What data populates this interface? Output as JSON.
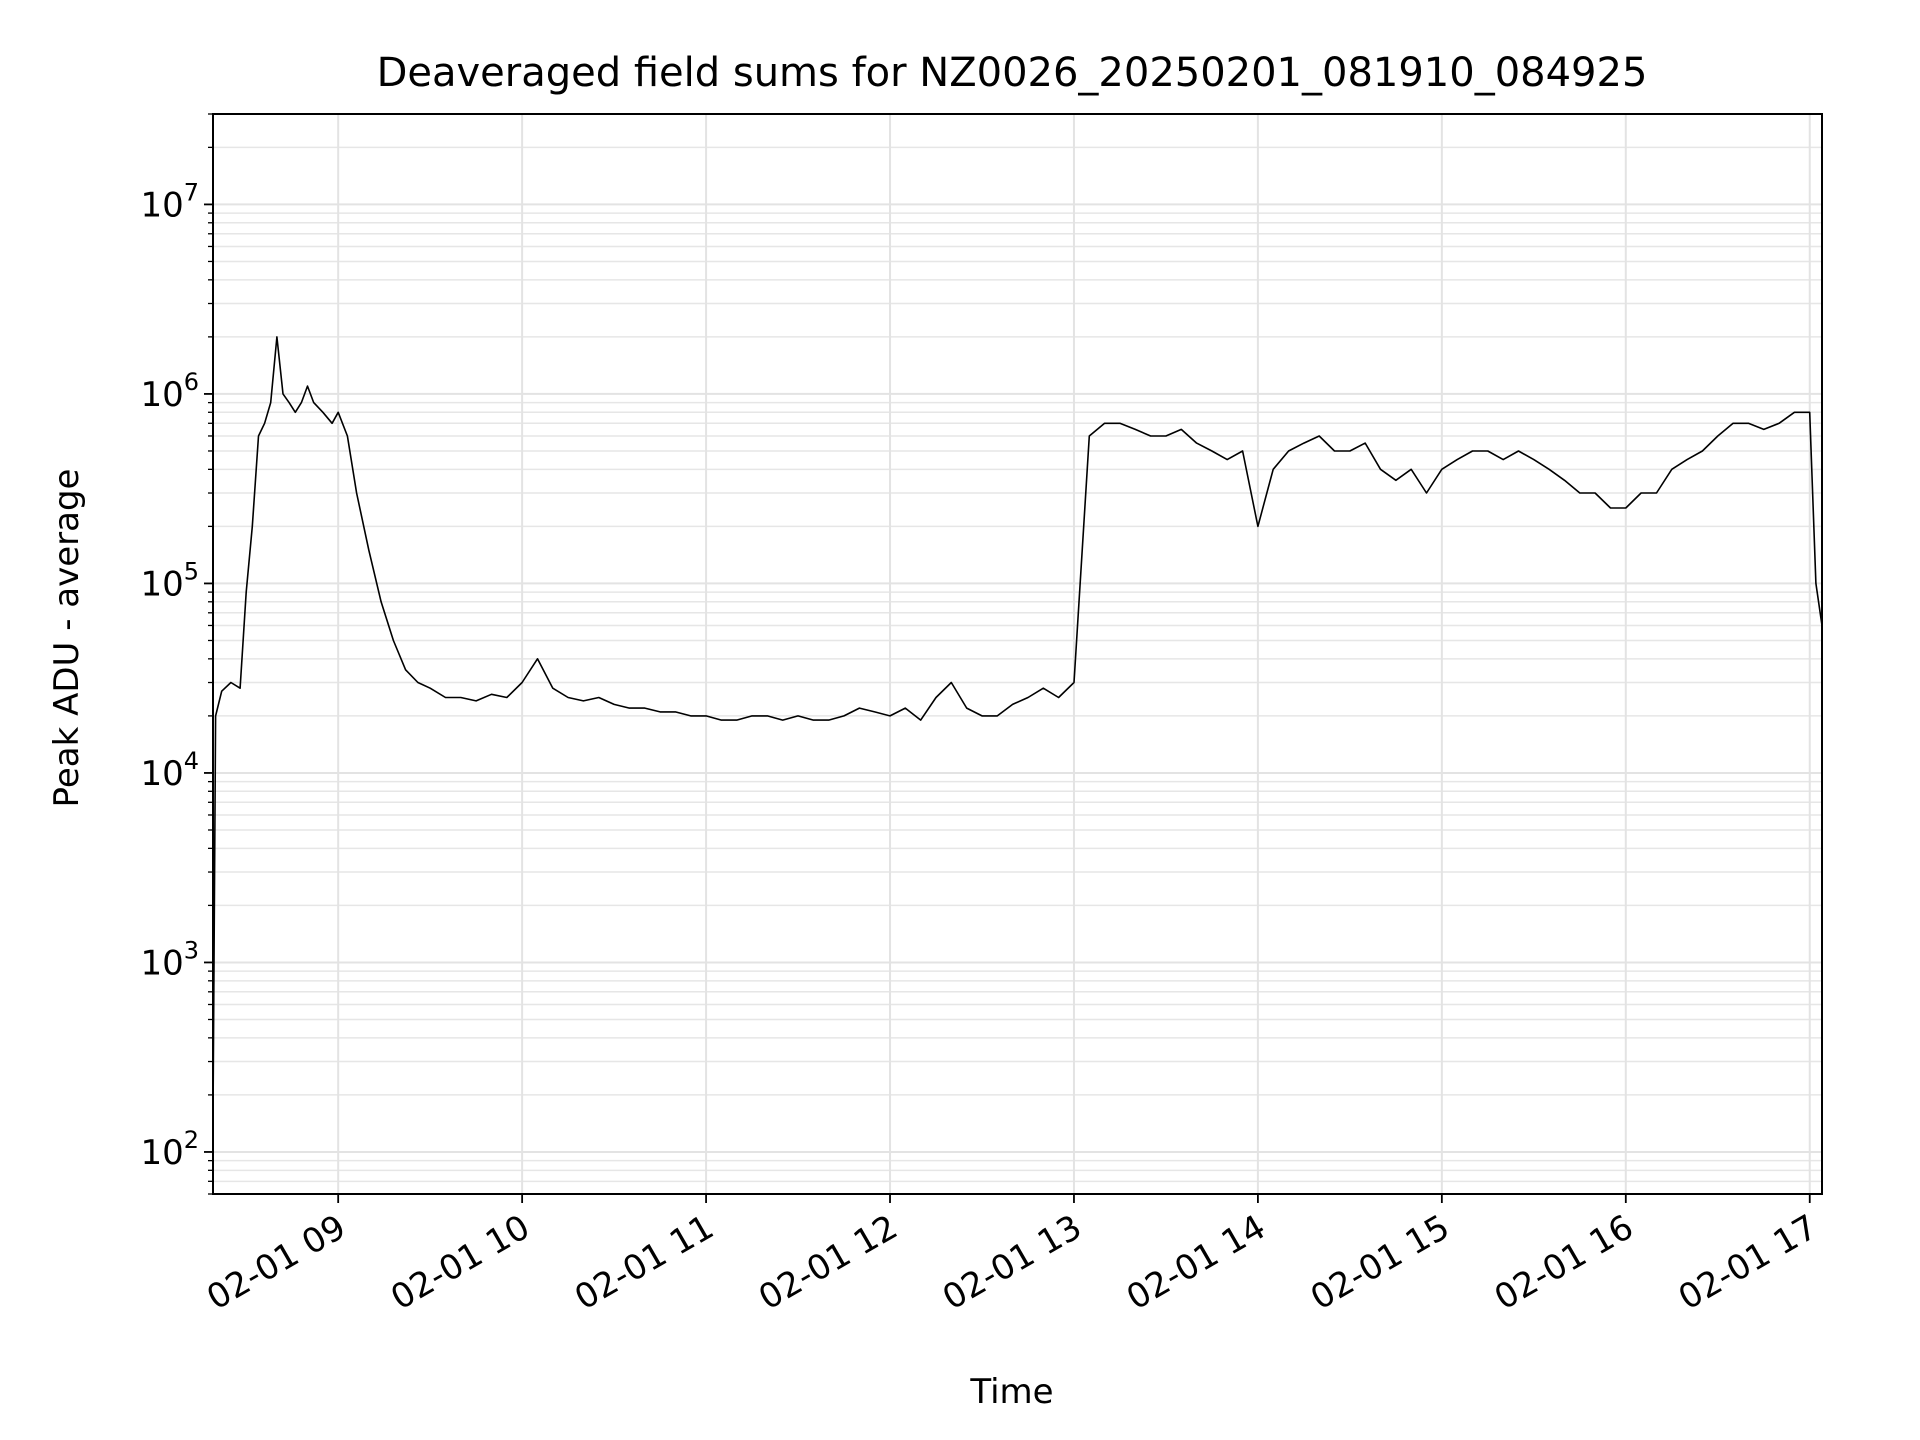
{
  "chart_data": {
    "type": "line",
    "title": "Deaveraged field sums for NZ0026_20250201_081910_084925",
    "xlabel": "Time",
    "ylabel": "Peak ADU - average",
    "yscale": "log",
    "ylim": [
      60,
      30000000
    ],
    "xlim": [
      "2025-02-01 08:19:10",
      "2025-02-01 17:04:00"
    ],
    "xticks": [
      {
        "t": "2025-02-01 09:00",
        "label": "02-01 09"
      },
      {
        "t": "2025-02-01 10:00",
        "label": "02-01 10"
      },
      {
        "t": "2025-02-01 11:00",
        "label": "02-01 11"
      },
      {
        "t": "2025-02-01 12:00",
        "label": "02-01 12"
      },
      {
        "t": "2025-02-01 13:00",
        "label": "02-01 13"
      },
      {
        "t": "2025-02-01 14:00",
        "label": "02-01 14"
      },
      {
        "t": "2025-02-01 15:00",
        "label": "02-01 15"
      },
      {
        "t": "2025-02-01 16:00",
        "label": "02-01 16"
      },
      {
        "t": "2025-02-01 17:00",
        "label": "02-01 17"
      }
    ],
    "yticks": [
      {
        "value": 100,
        "base": "10",
        "exp": "2"
      },
      {
        "value": 1000,
        "base": "10",
        "exp": "3"
      },
      {
        "value": 10000,
        "base": "10",
        "exp": "4"
      },
      {
        "value": 100000,
        "base": "10",
        "exp": "5"
      },
      {
        "value": 1000000,
        "base": "10",
        "exp": "6"
      },
      {
        "value": 10000000,
        "base": "10",
        "exp": "7"
      }
    ],
    "grid": true,
    "series": [
      {
        "color": "#000000",
        "x": [
          "2025-02-01 08:19:10",
          "2025-02-01 08:20:00",
          "2025-02-01 08:22:00",
          "2025-02-01 08:25:00",
          "2025-02-01 08:28:00",
          "2025-02-01 08:30:00",
          "2025-02-01 08:32:00",
          "2025-02-01 08:34:00",
          "2025-02-01 08:36:00",
          "2025-02-01 08:38:00",
          "2025-02-01 08:40:00",
          "2025-02-01 08:42:00",
          "2025-02-01 08:44:00",
          "2025-02-01 08:46:00",
          "2025-02-01 08:48:00",
          "2025-02-01 08:50:00",
          "2025-02-01 08:52:00",
          "2025-02-01 08:55:00",
          "2025-02-01 08:58:00",
          "2025-02-01 09:00:00",
          "2025-02-01 09:03:00",
          "2025-02-01 09:06:00",
          "2025-02-01 09:10:00",
          "2025-02-01 09:14:00",
          "2025-02-01 09:18:00",
          "2025-02-01 09:22:00",
          "2025-02-01 09:26:00",
          "2025-02-01 09:30:00",
          "2025-02-01 09:35:00",
          "2025-02-01 09:40:00",
          "2025-02-01 09:45:00",
          "2025-02-01 09:50:00",
          "2025-02-01 09:55:00",
          "2025-02-01 10:00:00",
          "2025-02-01 10:05:00",
          "2025-02-01 10:10:00",
          "2025-02-01 10:15:00",
          "2025-02-01 10:20:00",
          "2025-02-01 10:25:00",
          "2025-02-01 10:30:00",
          "2025-02-01 10:35:00",
          "2025-02-01 10:40:00",
          "2025-02-01 10:45:00",
          "2025-02-01 10:50:00",
          "2025-02-01 10:55:00",
          "2025-02-01 11:00:00",
          "2025-02-01 11:05:00",
          "2025-02-01 11:10:00",
          "2025-02-01 11:15:00",
          "2025-02-01 11:20:00",
          "2025-02-01 11:25:00",
          "2025-02-01 11:30:00",
          "2025-02-01 11:35:00",
          "2025-02-01 11:40:00",
          "2025-02-01 11:45:00",
          "2025-02-01 11:50:00",
          "2025-02-01 11:55:00",
          "2025-02-01 12:00:00",
          "2025-02-01 12:05:00",
          "2025-02-01 12:10:00",
          "2025-02-01 12:15:00",
          "2025-02-01 12:20:00",
          "2025-02-01 12:25:00",
          "2025-02-01 12:30:00",
          "2025-02-01 12:35:00",
          "2025-02-01 12:40:00",
          "2025-02-01 12:45:00",
          "2025-02-01 12:50:00",
          "2025-02-01 12:55:00",
          "2025-02-01 13:00:00",
          "2025-02-01 13:05:00",
          "2025-02-01 13:10:00",
          "2025-02-01 13:15:00",
          "2025-02-01 13:20:00",
          "2025-02-01 13:25:00",
          "2025-02-01 13:30:00",
          "2025-02-01 13:35:00",
          "2025-02-01 13:40:00",
          "2025-02-01 13:45:00",
          "2025-02-01 13:50:00",
          "2025-02-01 13:55:00",
          "2025-02-01 14:00:00",
          "2025-02-01 14:05:00",
          "2025-02-01 14:10:00",
          "2025-02-01 14:15:00",
          "2025-02-01 14:20:00",
          "2025-02-01 14:25:00",
          "2025-02-01 14:30:00",
          "2025-02-01 14:35:00",
          "2025-02-01 14:40:00",
          "2025-02-01 14:45:00",
          "2025-02-01 14:50:00",
          "2025-02-01 14:55:00",
          "2025-02-01 15:00:00",
          "2025-02-01 15:05:00",
          "2025-02-01 15:10:00",
          "2025-02-01 15:15:00",
          "2025-02-01 15:20:00",
          "2025-02-01 15:25:00",
          "2025-02-01 15:30:00",
          "2025-02-01 15:35:00",
          "2025-02-01 15:40:00",
          "2025-02-01 15:45:00",
          "2025-02-01 15:50:00",
          "2025-02-01 15:55:00",
          "2025-02-01 16:00:00",
          "2025-02-01 16:05:00",
          "2025-02-01 16:10:00",
          "2025-02-01 16:15:00",
          "2025-02-01 16:20:00",
          "2025-02-01 16:25:00",
          "2025-02-01 16:30:00",
          "2025-02-01 16:35:00",
          "2025-02-01 16:40:00",
          "2025-02-01 16:45:00",
          "2025-02-01 16:50:00",
          "2025-02-01 16:55:00",
          "2025-02-01 17:00:00",
          "2025-02-01 17:02:00",
          "2025-02-01 17:04:00"
        ],
        "y": [
          150,
          20000,
          27000,
          30000,
          28000,
          90000,
          200000,
          600000,
          700000,
          900000,
          2000000,
          1000000,
          900000,
          800000,
          900000,
          1100000,
          900000,
          800000,
          700000,
          800000,
          600000,
          300000,
          150000,
          80000,
          50000,
          35000,
          30000,
          28000,
          25000,
          25000,
          24000,
          26000,
          25000,
          30000,
          40000,
          28000,
          25000,
          24000,
          25000,
          23000,
          22000,
          22000,
          21000,
          21000,
          20000,
          20000,
          19000,
          19000,
          20000,
          20000,
          19000,
          20000,
          19000,
          19000,
          20000,
          22000,
          21000,
          20000,
          22000,
          19000,
          25000,
          30000,
          22000,
          20000,
          20000,
          23000,
          25000,
          28000,
          25000,
          30000,
          600000,
          700000,
          700000,
          650000,
          600000,
          600000,
          650000,
          550000,
          500000,
          450000,
          500000,
          200000,
          400000,
          500000,
          550000,
          600000,
          500000,
          500000,
          550000,
          400000,
          350000,
          400000,
          300000,
          400000,
          450000,
          500000,
          500000,
          450000,
          500000,
          450000,
          400000,
          350000,
          300000,
          300000,
          250000,
          250000,
          300000,
          300000,
          400000,
          450000,
          500000,
          600000,
          700000,
          700000,
          650000,
          700000,
          800000,
          800000,
          100000,
          60000
        ]
      }
    ]
  }
}
